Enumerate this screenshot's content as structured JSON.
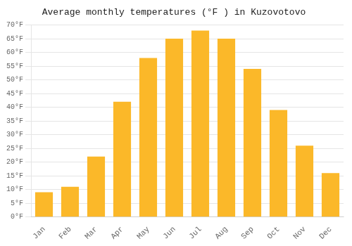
{
  "chart_data": {
    "type": "bar",
    "title": "Average monthly temperatures (°F ) in Kuzovotovo",
    "categories": [
      "Jan",
      "Feb",
      "Mar",
      "Apr",
      "May",
      "Jun",
      "Jul",
      "Aug",
      "Sep",
      "Oct",
      "Nov",
      "Dec"
    ],
    "values": [
      9,
      11,
      22,
      42,
      58,
      65,
      68,
      65,
      54,
      39,
      26,
      16
    ],
    "color": "#FBB829",
    "ylim": [
      0,
      70
    ],
    "yticks": [
      {
        "value": 0,
        "label": "0°F"
      },
      {
        "value": 5,
        "label": "5°F"
      },
      {
        "value": 10,
        "label": "10°F"
      },
      {
        "value": 15,
        "label": "15°F"
      },
      {
        "value": 20,
        "label": "20°F"
      },
      {
        "value": 25,
        "label": "25°F"
      },
      {
        "value": 30,
        "label": "30°F"
      },
      {
        "value": 35,
        "label": "35°F"
      },
      {
        "value": 40,
        "label": "40°F"
      },
      {
        "value": 45,
        "label": "45°F"
      },
      {
        "value": 50,
        "label": "50°F"
      },
      {
        "value": 55,
        "label": "55°F"
      },
      {
        "value": 60,
        "label": "60°F"
      },
      {
        "value": 65,
        "label": "65°F"
      },
      {
        "value": 70,
        "label": "70°F"
      }
    ],
    "grid": true
  }
}
